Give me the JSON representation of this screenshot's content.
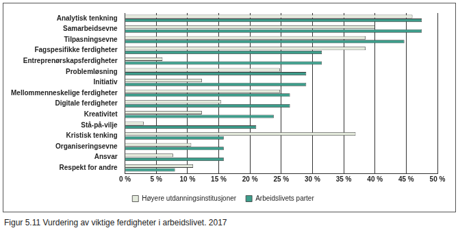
{
  "chart_data": {
    "type": "bar",
    "orientation": "horizontal",
    "title": "Figur 5.11  Vurdering av viktige ferdigheter i arbeidslivet. 2017",
    "categories": [
      "Analytisk tenkning",
      "Samarbeidsevne",
      "Tilpasningsevne",
      "Fagspesifikke ferdigheter",
      "Entreprenørskapsferdigheter",
      "Problemløsning",
      "Initiativ",
      "Mellommenneskelige ferdigheter",
      "Digitale ferdigheter",
      "Kreativitet",
      "Stå-på-vilje",
      "Kristisk tenking",
      "Organiseringsevne",
      "Ansvar",
      "Respekt for andre"
    ],
    "series": [
      {
        "name": "Høyere utdanningsinstitusjoner",
        "color": "#e4eadc",
        "values": [
          46,
          40,
          38.5,
          38.5,
          6,
          24.8,
          12.3,
          24.8,
          15.4,
          12.3,
          3,
          36.9,
          10.6,
          7.7,
          10.9
        ]
      },
      {
        "name": "Arbeidslivets parter",
        "color": "#3d9d8b",
        "values": [
          47.5,
          47.5,
          44.7,
          31.5,
          31.5,
          29,
          29,
          26.4,
          26.4,
          23.8,
          21,
          15.8,
          15.8,
          15.8,
          8
        ]
      }
    ],
    "xlim": [
      0,
      50
    ],
    "xticks": [
      {
        "value": 0,
        "label": "0 %"
      },
      {
        "value": 5,
        "label": "5 %"
      },
      {
        "value": 10,
        "label": "10 %"
      },
      {
        "value": 15,
        "label": "15 %"
      },
      {
        "value": 20,
        "label": "20 %"
      },
      {
        "value": 25,
        "label": "25 %"
      },
      {
        "value": 30,
        "label": "30 %"
      },
      {
        "value": 35,
        "label": "35 %"
      },
      {
        "value": 40,
        "label": "40 %"
      },
      {
        "value": 45,
        "label": "45 %"
      },
      {
        "value": 50,
        "label": "50 %"
      }
    ],
    "grid": true,
    "legend": "bottom"
  }
}
